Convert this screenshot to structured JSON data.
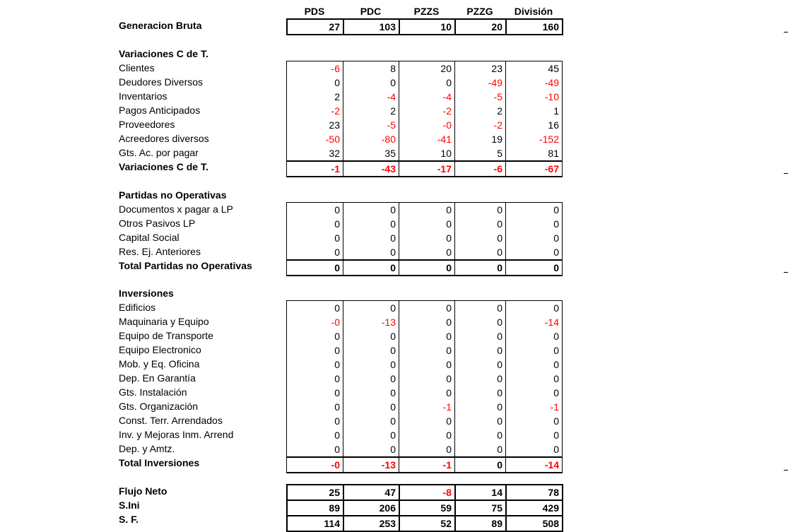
{
  "columns": [
    "PDS",
    "PDC",
    "PZZS",
    "PZZG",
    "División"
  ],
  "generacion": {
    "label": "Generacion Bruta",
    "values": [
      27,
      103,
      10,
      20,
      160
    ]
  },
  "variaciones": {
    "title": "Variaciones C de T.",
    "rows": [
      {
        "label": "Clientes",
        "values": [
          -6,
          8,
          20,
          23,
          45
        ]
      },
      {
        "label": "Deudores Diversos",
        "values": [
          0,
          0,
          0,
          -49,
          -49
        ]
      },
      {
        "label": "Inventarios",
        "values": [
          2,
          -4,
          -4,
          -5,
          -10
        ]
      },
      {
        "label": "Pagos Anticipados",
        "values": [
          -2,
          2,
          -2,
          2,
          1
        ]
      },
      {
        "label": "Proveedores",
        "values": [
          23,
          -5,
          "-0",
          -2,
          16
        ]
      },
      {
        "label": "Acreedores diversos",
        "values": [
          -50,
          -80,
          -41,
          19,
          -152
        ]
      },
      {
        "label": "Gts. Ac. por pagar",
        "values": [
          32,
          35,
          10,
          5,
          81
        ]
      }
    ],
    "total": {
      "label": "Variaciones C de T.",
      "values": [
        -1,
        -43,
        -17,
        -6,
        -67
      ]
    }
  },
  "partidas": {
    "title": "Partidas no Operativas",
    "rows": [
      {
        "label": "Documentos x pagar a LP",
        "values": [
          0,
          0,
          0,
          0,
          0
        ]
      },
      {
        "label": "Otros Pasivos LP",
        "values": [
          0,
          0,
          0,
          0,
          0
        ]
      },
      {
        "label": "Capital Social",
        "values": [
          0,
          0,
          0,
          0,
          0
        ]
      },
      {
        "label": "Res. Ej. Anteriores",
        "values": [
          0,
          0,
          0,
          0,
          0
        ]
      }
    ],
    "total": {
      "label": "Total Partidas no Operativas",
      "values": [
        0,
        0,
        0,
        0,
        0
      ]
    }
  },
  "inversiones": {
    "title": "Inversiones",
    "rows": [
      {
        "label": "Edificios",
        "values": [
          0,
          0,
          0,
          0,
          0
        ]
      },
      {
        "label": "Maquinaria y Equipo",
        "values": [
          "-0",
          -13,
          0,
          0,
          -14
        ]
      },
      {
        "label": "Equipo de Transporte",
        "values": [
          0,
          0,
          0,
          0,
          0
        ]
      },
      {
        "label": "Equipo Electronico",
        "values": [
          0,
          0,
          0,
          0,
          0
        ]
      },
      {
        "label": "Mob. y Eq. Oficina",
        "values": [
          0,
          0,
          0,
          0,
          0
        ]
      },
      {
        "label": "Dep. En Garantía",
        "values": [
          0,
          0,
          0,
          0,
          0
        ]
      },
      {
        "label": "Gts. Instalación",
        "values": [
          0,
          0,
          0,
          0,
          0
        ]
      },
      {
        "label": "Gts. Organización",
        "values": [
          0,
          0,
          -1,
          0,
          -1
        ]
      },
      {
        "label": "Const. Terr. Arrendados",
        "values": [
          0,
          0,
          0,
          0,
          0
        ]
      },
      {
        "label": "Inv. y Mejoras Inm. Arrend",
        "values": [
          0,
          0,
          0,
          0,
          0
        ]
      },
      {
        "label": "Dep. y Amtz.",
        "values": [
          0,
          0,
          0,
          0,
          0
        ]
      }
    ],
    "total": {
      "label": "Total Inversiones",
      "values": [
        "-0",
        -13,
        -1,
        0,
        -14
      ]
    }
  },
  "resumen": [
    {
      "label": "Flujo Neto",
      "values": [
        25,
        47,
        -8,
        14,
        78
      ]
    },
    {
      "label": "S.Ini",
      "values": [
        89,
        206,
        59,
        75,
        429
      ]
    },
    {
      "label": "S. F.",
      "values": [
        114,
        253,
        52,
        89,
        508
      ]
    }
  ],
  "colors": {
    "negative": "#ff0000",
    "text": "#000000",
    "border": "#000000"
  }
}
